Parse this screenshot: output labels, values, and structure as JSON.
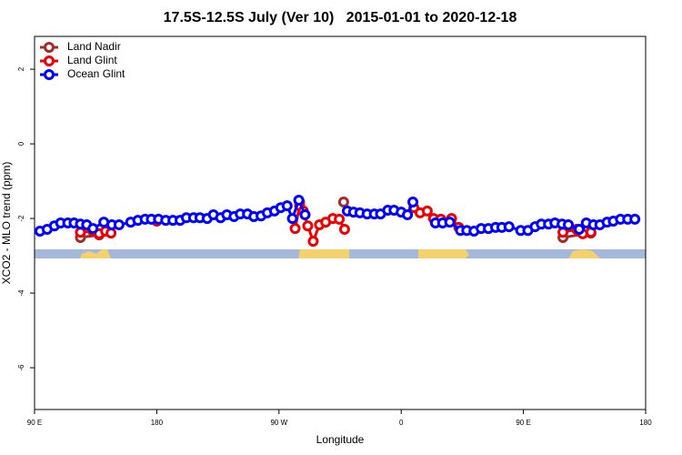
{
  "chart_data": {
    "type": "line",
    "title": "17.5S-12.5S July (Ver 10)   2015-01-01 to 2020-12-18",
    "xlabel": "Longitude",
    "ylabel": "XCO2 - MLO trend (ppm)",
    "xlim": [
      90,
      540
    ],
    "ylim": [
      -7.12,
      2.88
    ],
    "xticks": [
      {
        "value": 90,
        "label": "90 E"
      },
      {
        "value": 180,
        "label": "180"
      },
      {
        "value": 270,
        "label": "90 W"
      },
      {
        "value": 360,
        "label": "0"
      },
      {
        "value": 450,
        "label": "90 E"
      },
      {
        "value": 540,
        "label": "180"
      }
    ],
    "yticks": [
      -6,
      -4,
      -2,
      0,
      2
    ],
    "legend": "top-left",
    "series": [
      {
        "name": "Land Nadir",
        "color": "#a52a2a",
        "x": [
          123.8,
          137.6,
          null,
          285.2,
          null,
          317.6,
          null,
          479.1,
          499.7
        ],
        "values": [
          -2.51,
          -2.44,
          null,
          -1.56,
          null,
          -1.56,
          null,
          -2.51,
          -2.39
        ]
      },
      {
        "name": "Land Glint",
        "color": "#ee0000",
        "x": [
          123.8,
          133.0,
          137.6,
          142.3,
          146.3,
          null,
          180.0,
          null,
          281.9,
          285.2,
          287.9,
          291.2,
          295.2,
          299.8,
          304.4,
          309.7,
          314.4,
          318.3,
          null,
          369.3,
          373.9,
          379.2,
          383.8,
          389.2,
          397.1,
          402.4,
          null,
          479.1,
          489.1,
          493.7,
          499.7
        ],
        "values": [
          -2.37,
          -2.34,
          -2.41,
          -2.34,
          -2.39,
          null,
          -2.07,
          null,
          -2.27,
          -1.66,
          -1.8,
          -2.2,
          -2.61,
          -2.17,
          -2.1,
          -2.0,
          -2.02,
          -2.29,
          null,
          -1.71,
          -1.85,
          -1.8,
          -2.0,
          -2.02,
          -2.0,
          -2.24,
          null,
          -2.37,
          -2.29,
          -2.41,
          -2.37
        ]
      },
      {
        "name": "Ocean Glint",
        "color": "#0000ff",
        "x": [
          94.0,
          99.3,
          104.6,
          109.2,
          114.5,
          119.1,
          123.8,
          128.4,
          133.0,
          141.0,
          146.9,
          152.2,
          160.8,
          166.1,
          171.4,
          176.0,
          181.3,
          186.6,
          191.9,
          197.2,
          201.8,
          207.1,
          211.8,
          217.1,
          221.7,
          227.0,
          231.6,
          236.9,
          241.5,
          246.8,
          251.5,
          256.8,
          261.4,
          266.7,
          271.3,
          276.0,
          279.9,
          284.6,
          289.2,
          null,
          320.3,
          324.9,
          329.6,
          334.9,
          340.2,
          344.8,
          350.1,
          354.7,
          360.0,
          364.6,
          368.6,
          null,
          385.2,
          390.5,
          395.8,
          403.7,
          408.3,
          413.6,
          418.9,
          424.2,
          429.5,
          434.1,
          439.4,
          448.0,
          453.3,
          458.6,
          463.2,
          468.5,
          473.2,
          478.5,
          483.1,
          491.1,
          496.3,
          501.6,
          506.3,
          511.6,
          516.2,
          521.5,
          526.8,
          532.1
        ],
        "values": [
          -2.34,
          -2.29,
          -2.2,
          -2.12,
          -2.12,
          -2.12,
          -2.15,
          -2.17,
          -2.27,
          -2.1,
          -2.17,
          -2.17,
          -2.1,
          -2.05,
          -2.02,
          -2.02,
          -2.02,
          -2.05,
          -2.05,
          -2.05,
          -1.98,
          -1.98,
          -1.98,
          -2.0,
          -1.9,
          -1.98,
          -1.9,
          -1.95,
          -1.88,
          -1.88,
          -1.95,
          -1.93,
          -1.85,
          -1.8,
          -1.71,
          -1.66,
          -2.0,
          -1.51,
          -1.9,
          null,
          -1.8,
          -1.83,
          -1.85,
          -1.88,
          -1.88,
          -1.88,
          -1.78,
          -1.78,
          -1.83,
          -1.9,
          -1.56,
          null,
          -2.12,
          -2.12,
          -2.1,
          -2.32,
          -2.32,
          -2.34,
          -2.27,
          -2.27,
          -2.24,
          -2.24,
          -2.22,
          -2.32,
          -2.32,
          -2.22,
          -2.15,
          -2.15,
          -2.12,
          -2.15,
          -2.17,
          -2.29,
          -2.12,
          -2.17,
          -2.17,
          -2.1,
          -2.07,
          -2.02,
          -2.02,
          -2.02
        ]
      }
    ]
  }
}
